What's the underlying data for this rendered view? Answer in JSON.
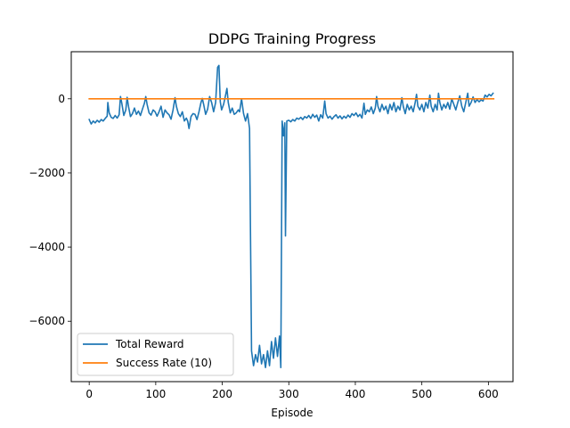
{
  "chart_data": {
    "type": "line",
    "title": "DDPG Training Progress",
    "xlabel": "Episode",
    "ylabel": "",
    "xlim": [
      -27,
      637
    ],
    "ylim": [
      -7630,
      1270
    ],
    "xticks": [
      0,
      100,
      200,
      300,
      400,
      500,
      600
    ],
    "yticks": [
      -6000,
      -4000,
      -2000,
      0
    ],
    "grid": false,
    "legend": "lower-left",
    "series": [
      {
        "name": "Total Reward",
        "color": "#1f77b4",
        "points": [
          [
            0,
            -560
          ],
          [
            3,
            -680
          ],
          [
            6,
            -600
          ],
          [
            9,
            -650
          ],
          [
            12,
            -580
          ],
          [
            15,
            -630
          ],
          [
            18,
            -560
          ],
          [
            21,
            -600
          ],
          [
            24,
            -530
          ],
          [
            27,
            -470
          ],
          [
            28,
            -100
          ],
          [
            30,
            -380
          ],
          [
            33,
            -500
          ],
          [
            36,
            -530
          ],
          [
            39,
            -450
          ],
          [
            42,
            -520
          ],
          [
            45,
            -430
          ],
          [
            47,
            60
          ],
          [
            49,
            -120
          ],
          [
            52,
            -450
          ],
          [
            55,
            -300
          ],
          [
            57,
            40
          ],
          [
            59,
            -200
          ],
          [
            62,
            -480
          ],
          [
            65,
            -400
          ],
          [
            68,
            -250
          ],
          [
            71,
            -420
          ],
          [
            74,
            -330
          ],
          [
            77,
            -450
          ],
          [
            80,
            -280
          ],
          [
            83,
            -120
          ],
          [
            85,
            60
          ],
          [
            87,
            -150
          ],
          [
            90,
            -380
          ],
          [
            93,
            -440
          ],
          [
            96,
            -300
          ],
          [
            99,
            -350
          ],
          [
            102,
            -470
          ],
          [
            105,
            -350
          ],
          [
            108,
            -200
          ],
          [
            111,
            -500
          ],
          [
            114,
            -300
          ],
          [
            117,
            -380
          ],
          [
            120,
            -430
          ],
          [
            123,
            -550
          ],
          [
            126,
            -300
          ],
          [
            129,
            30
          ],
          [
            131,
            -200
          ],
          [
            134,
            -400
          ],
          [
            137,
            -480
          ],
          [
            140,
            -350
          ],
          [
            143,
            -600
          ],
          [
            146,
            -520
          ],
          [
            148,
            -600
          ],
          [
            150,
            -800
          ],
          [
            153,
            -480
          ],
          [
            156,
            -400
          ],
          [
            159,
            -420
          ],
          [
            162,
            -560
          ],
          [
            165,
            -350
          ],
          [
            168,
            -100
          ],
          [
            170,
            10
          ],
          [
            172,
            -150
          ],
          [
            175,
            -420
          ],
          [
            178,
            -280
          ],
          [
            181,
            60
          ],
          [
            184,
            -100
          ],
          [
            187,
            -350
          ],
          [
            190,
            -100
          ],
          [
            193,
            850
          ],
          [
            195,
            900
          ],
          [
            197,
            -80
          ],
          [
            199,
            -300
          ],
          [
            202,
            -150
          ],
          [
            205,
            100
          ],
          [
            207,
            280
          ],
          [
            209,
            -100
          ],
          [
            212,
            -380
          ],
          [
            215,
            -250
          ],
          [
            218,
            -420
          ],
          [
            221,
            -380
          ],
          [
            224,
            -300
          ],
          [
            226,
            -350
          ],
          [
            229,
            0
          ],
          [
            232,
            -400
          ],
          [
            235,
            -600
          ],
          [
            238,
            -400
          ],
          [
            241,
            -800
          ],
          [
            244,
            -6800
          ],
          [
            247,
            -7200
          ],
          [
            250,
            -6900
          ],
          [
            253,
            -7100
          ],
          [
            256,
            -6650
          ],
          [
            259,
            -7150
          ],
          [
            262,
            -6900
          ],
          [
            265,
            -7250
          ],
          [
            268,
            -6800
          ],
          [
            271,
            -7200
          ],
          [
            274,
            -6550
          ],
          [
            277,
            -7000
          ],
          [
            280,
            -6450
          ],
          [
            283,
            -6950
          ],
          [
            286,
            -6400
          ],
          [
            288,
            -7250
          ],
          [
            290,
            -600
          ],
          [
            292,
            -1000
          ],
          [
            294,
            -650
          ],
          [
            295,
            -3700
          ],
          [
            297,
            -600
          ],
          [
            300,
            -580
          ],
          [
            303,
            -620
          ],
          [
            306,
            -560
          ],
          [
            309,
            -600
          ],
          [
            312,
            -520
          ],
          [
            315,
            -550
          ],
          [
            318,
            -500
          ],
          [
            321,
            -560
          ],
          [
            324,
            -480
          ],
          [
            327,
            -520
          ],
          [
            330,
            -450
          ],
          [
            333,
            -530
          ],
          [
            336,
            -420
          ],
          [
            339,
            -500
          ],
          [
            342,
            -440
          ],
          [
            345,
            -600
          ],
          [
            348,
            -430
          ],
          [
            351,
            -520
          ],
          [
            354,
            -60
          ],
          [
            356,
            -400
          ],
          [
            359,
            -520
          ],
          [
            362,
            -470
          ],
          [
            365,
            -550
          ],
          [
            368,
            -480
          ],
          [
            371,
            -430
          ],
          [
            374,
            -520
          ],
          [
            377,
            -460
          ],
          [
            380,
            -540
          ],
          [
            383,
            -470
          ],
          [
            386,
            -520
          ],
          [
            389,
            -440
          ],
          [
            392,
            -500
          ],
          [
            395,
            -400
          ],
          [
            398,
            -450
          ],
          [
            401,
            -380
          ],
          [
            404,
            -480
          ],
          [
            407,
            -420
          ],
          [
            410,
            -520
          ],
          [
            413,
            -120
          ],
          [
            415,
            -420
          ],
          [
            418,
            -300
          ],
          [
            421,
            -350
          ],
          [
            424,
            -220
          ],
          [
            427,
            -400
          ],
          [
            430,
            -250
          ],
          [
            432,
            60
          ],
          [
            434,
            -200
          ],
          [
            437,
            -350
          ],
          [
            440,
            -150
          ],
          [
            443,
            -300
          ],
          [
            446,
            -200
          ],
          [
            449,
            -400
          ],
          [
            452,
            -150
          ],
          [
            455,
            -300
          ],
          [
            458,
            -100
          ],
          [
            461,
            -350
          ],
          [
            464,
            -200
          ],
          [
            467,
            -300
          ],
          [
            470,
            30
          ],
          [
            472,
            -200
          ],
          [
            475,
            -400
          ],
          [
            478,
            -150
          ],
          [
            481,
            -300
          ],
          [
            484,
            -200
          ],
          [
            487,
            -350
          ],
          [
            490,
            -100
          ],
          [
            492,
            120
          ],
          [
            494,
            -200
          ],
          [
            497,
            -300
          ],
          [
            500,
            -150
          ],
          [
            503,
            -350
          ],
          [
            506,
            -100
          ],
          [
            509,
            -250
          ],
          [
            512,
            100
          ],
          [
            514,
            -200
          ],
          [
            517,
            -350
          ],
          [
            520,
            -150
          ],
          [
            523,
            -300
          ],
          [
            525,
            150
          ],
          [
            527,
            -100
          ],
          [
            530,
            -300
          ],
          [
            533,
            -150
          ],
          [
            536,
            -250
          ],
          [
            539,
            -100
          ],
          [
            542,
            -280
          ],
          [
            545,
            0
          ],
          [
            548,
            -150
          ],
          [
            551,
            -300
          ],
          [
            554,
            -100
          ],
          [
            557,
            80
          ],
          [
            560,
            -200
          ],
          [
            563,
            -350
          ],
          [
            566,
            -100
          ],
          [
            569,
            150
          ],
          [
            571,
            -200
          ],
          [
            574,
            -100
          ],
          [
            577,
            50
          ],
          [
            580,
            -100
          ],
          [
            583,
            -20
          ],
          [
            586,
            -80
          ],
          [
            589,
            -30
          ],
          [
            592,
            -60
          ],
          [
            595,
            100
          ],
          [
            598,
            50
          ],
          [
            601,
            120
          ],
          [
            604,
            80
          ],
          [
            607,
            150
          ]
        ]
      },
      {
        "name": "Success Rate (10)",
        "color": "#ff7f0e",
        "points": [
          [
            0,
            0
          ],
          [
            608,
            0
          ]
        ]
      }
    ]
  }
}
